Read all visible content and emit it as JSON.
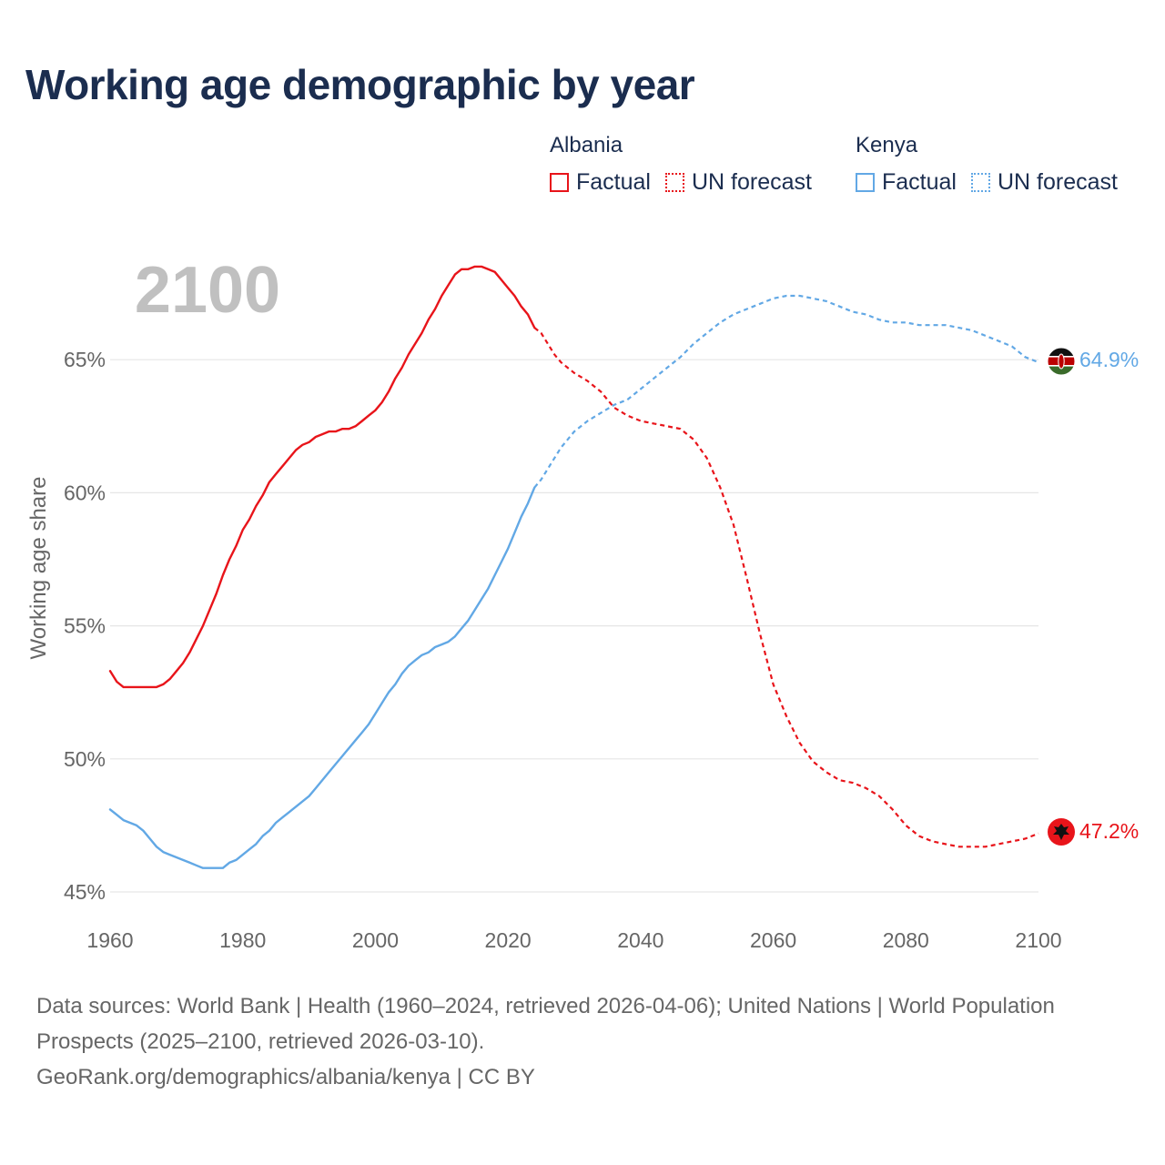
{
  "title": "Working age demographic by year",
  "legend": {
    "groups": [
      {
        "country": "Albania",
        "factual_label": "Factual",
        "forecast_label": "UN forecast",
        "color": "#e8141a"
      },
      {
        "country": "Kenya",
        "factual_label": "Factual",
        "forecast_label": "UN forecast",
        "color": "#62a8e5"
      }
    ]
  },
  "year_watermark": "2100",
  "footer": {
    "sources": "Data sources: World Bank | Health (1960–2024, retrieved 2026-04-06); United Nations | World Population Prospects (2025–2100, retrieved 2026-03-10).",
    "credit": "GeoRank.org/demographics/albania/kenya | CC BY"
  },
  "chart_data": {
    "type": "line",
    "title": "Working age demographic by year",
    "xlabel": "",
    "ylabel": "Working age share",
    "xlim": [
      1960,
      2100
    ],
    "ylim": [
      45,
      70
    ],
    "x_ticks": [
      "1960",
      "1980",
      "2000",
      "2020",
      "2040",
      "2060",
      "2080",
      "2100"
    ],
    "y_ticks": [
      {
        "value": 45,
        "label": "45%"
      },
      {
        "value": 50,
        "label": "50%"
      },
      {
        "value": 55,
        "label": "55%"
      },
      {
        "value": 60,
        "label": "60%"
      },
      {
        "value": 65,
        "label": "65%"
      }
    ],
    "factual_end_year": 2024,
    "series": [
      {
        "name": "Albania",
        "color": "#e8141a",
        "flag_icon": "albania-flag-icon",
        "end_label": "47.2%",
        "points": [
          [
            1960,
            53.3
          ],
          [
            1961,
            52.9
          ],
          [
            1962,
            52.7
          ],
          [
            1964,
            52.7
          ],
          [
            1966,
            52.7
          ],
          [
            1967,
            52.7
          ],
          [
            1968,
            52.8
          ],
          [
            1969,
            53.0
          ],
          [
            1970,
            53.3
          ],
          [
            1971,
            53.6
          ],
          [
            1972,
            54.0
          ],
          [
            1973,
            54.5
          ],
          [
            1974,
            55.0
          ],
          [
            1975,
            55.6
          ],
          [
            1976,
            56.2
          ],
          [
            1977,
            56.9
          ],
          [
            1978,
            57.5
          ],
          [
            1979,
            58.0
          ],
          [
            1980,
            58.6
          ],
          [
            1981,
            59.0
          ],
          [
            1982,
            59.5
          ],
          [
            1983,
            59.9
          ],
          [
            1984,
            60.4
          ],
          [
            1985,
            60.7
          ],
          [
            1986,
            61.0
          ],
          [
            1987,
            61.3
          ],
          [
            1988,
            61.6
          ],
          [
            1989,
            61.8
          ],
          [
            1990,
            61.9
          ],
          [
            1991,
            62.1
          ],
          [
            1992,
            62.2
          ],
          [
            1993,
            62.3
          ],
          [
            1994,
            62.3
          ],
          [
            1995,
            62.4
          ],
          [
            1996,
            62.4
          ],
          [
            1997,
            62.5
          ],
          [
            1998,
            62.7
          ],
          [
            1999,
            62.9
          ],
          [
            2000,
            63.1
          ],
          [
            2001,
            63.4
          ],
          [
            2002,
            63.8
          ],
          [
            2003,
            64.3
          ],
          [
            2004,
            64.7
          ],
          [
            2005,
            65.2
          ],
          [
            2006,
            65.6
          ],
          [
            2007,
            66.0
          ],
          [
            2008,
            66.5
          ],
          [
            2009,
            66.9
          ],
          [
            2010,
            67.4
          ],
          [
            2011,
            67.8
          ],
          [
            2012,
            68.2
          ],
          [
            2013,
            68.4
          ],
          [
            2014,
            68.4
          ],
          [
            2015,
            68.5
          ],
          [
            2016,
            68.5
          ],
          [
            2017,
            68.4
          ],
          [
            2018,
            68.3
          ],
          [
            2019,
            68.0
          ],
          [
            2020,
            67.7
          ],
          [
            2021,
            67.4
          ],
          [
            2022,
            67.0
          ],
          [
            2023,
            66.7
          ],
          [
            2024,
            66.2
          ],
          [
            2025,
            66.0
          ],
          [
            2026,
            65.6
          ],
          [
            2027,
            65.2
          ],
          [
            2028,
            64.9
          ],
          [
            2029,
            64.7
          ],
          [
            2030,
            64.5
          ],
          [
            2032,
            64.2
          ],
          [
            2034,
            63.8
          ],
          [
            2036,
            63.2
          ],
          [
            2038,
            62.9
          ],
          [
            2040,
            62.7
          ],
          [
            2042,
            62.6
          ],
          [
            2044,
            62.5
          ],
          [
            2046,
            62.4
          ],
          [
            2048,
            62.0
          ],
          [
            2050,
            61.3
          ],
          [
            2052,
            60.2
          ],
          [
            2054,
            58.8
          ],
          [
            2056,
            56.8
          ],
          [
            2058,
            54.7
          ],
          [
            2060,
            52.8
          ],
          [
            2062,
            51.6
          ],
          [
            2064,
            50.6
          ],
          [
            2066,
            49.9
          ],
          [
            2068,
            49.5
          ],
          [
            2070,
            49.2
          ],
          [
            2072,
            49.1
          ],
          [
            2074,
            48.9
          ],
          [
            2076,
            48.6
          ],
          [
            2078,
            48.1
          ],
          [
            2080,
            47.5
          ],
          [
            2082,
            47.1
          ],
          [
            2084,
            46.9
          ],
          [
            2086,
            46.8
          ],
          [
            2088,
            46.7
          ],
          [
            2090,
            46.7
          ],
          [
            2092,
            46.7
          ],
          [
            2094,
            46.8
          ],
          [
            2096,
            46.9
          ],
          [
            2098,
            47.0
          ],
          [
            2100,
            47.2
          ]
        ]
      },
      {
        "name": "Kenya",
        "color": "#62a8e5",
        "flag_icon": "kenya-flag-icon",
        "end_label": "64.9%",
        "points": [
          [
            1960,
            48.1
          ],
          [
            1961,
            47.9
          ],
          [
            1962,
            47.7
          ],
          [
            1963,
            47.6
          ],
          [
            1964,
            47.5
          ],
          [
            1965,
            47.3
          ],
          [
            1966,
            47.0
          ],
          [
            1967,
            46.7
          ],
          [
            1968,
            46.5
          ],
          [
            1969,
            46.4
          ],
          [
            1970,
            46.3
          ],
          [
            1971,
            46.2
          ],
          [
            1972,
            46.1
          ],
          [
            1973,
            46.0
          ],
          [
            1974,
            45.9
          ],
          [
            1975,
            45.9
          ],
          [
            1976,
            45.9
          ],
          [
            1977,
            45.9
          ],
          [
            1978,
            46.1
          ],
          [
            1979,
            46.2
          ],
          [
            1980,
            46.4
          ],
          [
            1981,
            46.6
          ],
          [
            1982,
            46.8
          ],
          [
            1983,
            47.1
          ],
          [
            1984,
            47.3
          ],
          [
            1985,
            47.6
          ],
          [
            1986,
            47.8
          ],
          [
            1987,
            48.0
          ],
          [
            1988,
            48.2
          ],
          [
            1989,
            48.4
          ],
          [
            1990,
            48.6
          ],
          [
            1991,
            48.9
          ],
          [
            1992,
            49.2
          ],
          [
            1993,
            49.5
          ],
          [
            1994,
            49.8
          ],
          [
            1995,
            50.1
          ],
          [
            1996,
            50.4
          ],
          [
            1997,
            50.7
          ],
          [
            1998,
            51.0
          ],
          [
            1999,
            51.3
          ],
          [
            2000,
            51.7
          ],
          [
            2001,
            52.1
          ],
          [
            2002,
            52.5
          ],
          [
            2003,
            52.8
          ],
          [
            2004,
            53.2
          ],
          [
            2005,
            53.5
          ],
          [
            2006,
            53.7
          ],
          [
            2007,
            53.9
          ],
          [
            2008,
            54.0
          ],
          [
            2009,
            54.2
          ],
          [
            2010,
            54.3
          ],
          [
            2011,
            54.4
          ],
          [
            2012,
            54.6
          ],
          [
            2013,
            54.9
          ],
          [
            2014,
            55.2
          ],
          [
            2015,
            55.6
          ],
          [
            2016,
            56.0
          ],
          [
            2017,
            56.4
          ],
          [
            2018,
            56.9
          ],
          [
            2019,
            57.4
          ],
          [
            2020,
            57.9
          ],
          [
            2021,
            58.5
          ],
          [
            2022,
            59.1
          ],
          [
            2023,
            59.6
          ],
          [
            2024,
            60.2
          ],
          [
            2025,
            60.5
          ],
          [
            2026,
            60.9
          ],
          [
            2027,
            61.3
          ],
          [
            2028,
            61.7
          ],
          [
            2029,
            62.0
          ],
          [
            2030,
            62.3
          ],
          [
            2032,
            62.7
          ],
          [
            2034,
            63.0
          ],
          [
            2036,
            63.3
          ],
          [
            2038,
            63.5
          ],
          [
            2040,
            63.9
          ],
          [
            2042,
            64.3
          ],
          [
            2044,
            64.7
          ],
          [
            2046,
            65.1
          ],
          [
            2048,
            65.6
          ],
          [
            2050,
            66.0
          ],
          [
            2052,
            66.4
          ],
          [
            2054,
            66.7
          ],
          [
            2056,
            66.9
          ],
          [
            2058,
            67.1
          ],
          [
            2060,
            67.3
          ],
          [
            2062,
            67.4
          ],
          [
            2064,
            67.4
          ],
          [
            2066,
            67.3
          ],
          [
            2068,
            67.2
          ],
          [
            2070,
            67.0
          ],
          [
            2072,
            66.8
          ],
          [
            2074,
            66.7
          ],
          [
            2076,
            66.5
          ],
          [
            2078,
            66.4
          ],
          [
            2080,
            66.4
          ],
          [
            2082,
            66.3
          ],
          [
            2084,
            66.3
          ],
          [
            2086,
            66.3
          ],
          [
            2088,
            66.2
          ],
          [
            2090,
            66.1
          ],
          [
            2092,
            65.9
          ],
          [
            2094,
            65.7
          ],
          [
            2096,
            65.5
          ],
          [
            2098,
            65.1
          ],
          [
            2100,
            64.9
          ]
        ]
      }
    ]
  }
}
